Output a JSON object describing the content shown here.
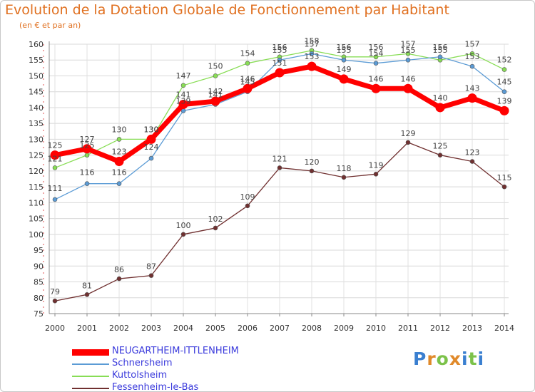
{
  "header": {
    "title": "Evolution de la Dotation Globale de Fonctionnement par Habitant",
    "subtitle": "(en € et par an)"
  },
  "brand": {
    "logo_text": "Proxiti",
    "letters": [
      "P",
      "r",
      "o",
      "x",
      "i",
      "t",
      "i"
    ]
  },
  "chart_data": {
    "type": "line",
    "title": "Evolution de la Dotation Globale de Fonctionnement par Habitant",
    "subtitle": "(en € et par an)",
    "xlabel": "",
    "ylabel": "",
    "ylim": [
      75,
      160
    ],
    "y_ticks": [
      75,
      80,
      85,
      90,
      95,
      100,
      105,
      110,
      115,
      120,
      125,
      130,
      135,
      140,
      145,
      150,
      155,
      160
    ],
    "grid": true,
    "legend_position": "bottom-left",
    "categories": [
      "2000",
      "2001",
      "2002",
      "2003",
      "2004",
      "2005",
      "2006",
      "2007",
      "2008",
      "2009",
      "2010",
      "2011",
      "2012",
      "2013",
      "2014"
    ],
    "series": [
      {
        "name": "NEUGARTHEIM-ITTLENHEIM",
        "color": "#ff0000",
        "values": [
          125,
          127,
          123,
          130,
          141,
          142,
          146,
          151,
          153,
          149,
          146,
          146,
          140,
          143,
          139
        ]
      },
      {
        "name": "Schnersheim",
        "color": "#5b9bd5",
        "values": [
          111,
          116,
          116,
          124,
          139,
          141,
          145,
          155,
          157,
          155,
          154,
          155,
          156,
          153,
          145
        ]
      },
      {
        "name": "Kuttolsheim",
        "color": "#88dd55",
        "values": [
          121,
          125,
          130,
          130,
          147,
          150,
          154,
          156,
          158,
          156,
          156,
          157,
          155,
          157,
          152
        ]
      },
      {
        "name": "Fessenheim-le-Bas",
        "color": "#703030",
        "values": [
          79,
          81,
          86,
          87,
          100,
          102,
          109,
          121,
          120,
          118,
          119,
          129,
          125,
          123,
          115
        ]
      }
    ]
  }
}
